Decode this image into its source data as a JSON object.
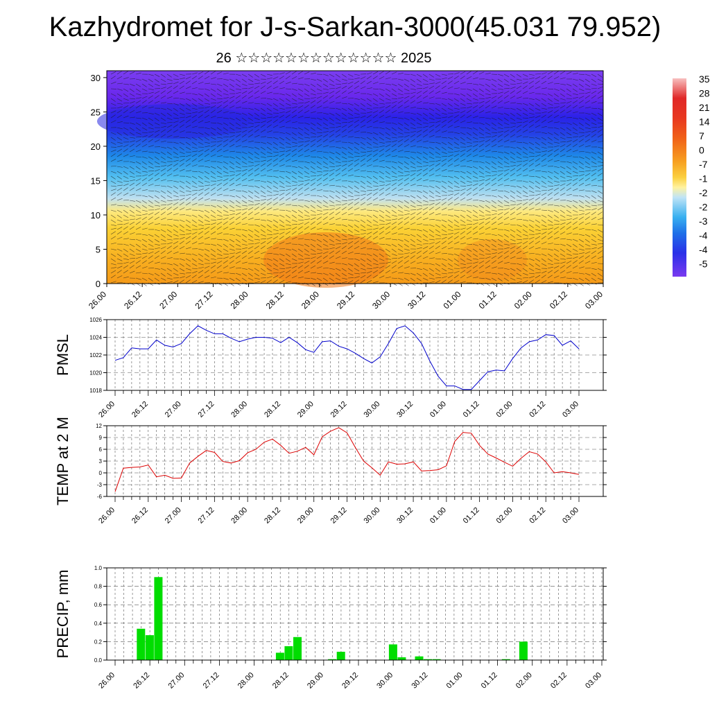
{
  "header": {
    "title": "Kazhydromet for J-s-Sarkan-3000(45.031 79.952)",
    "subtitle": "26 ☆☆☆☆☆☆☆☆☆☆☆☆☆ 2025"
  },
  "colors": {
    "pmsl_line": "#0000cc",
    "temp_line": "#dd0000",
    "precip_bar": "#00dd00"
  },
  "chart_data": [
    {
      "id": "cross_section",
      "type": "heatmap",
      "ylim": [
        0,
        31
      ],
      "yticks": [
        0,
        5,
        10,
        15,
        20,
        25,
        30
      ],
      "xtick_labels": [
        "26.00",
        "26.12",
        "27.00",
        "27.12",
        "28.00",
        "28.12",
        "29.00",
        "29.12",
        "30.00",
        "30.12",
        "01.00",
        "01.12",
        "02.00",
        "02.12",
        "03.00"
      ],
      "colorbar_labels": [
        "35",
        "28",
        "21",
        "14",
        "7",
        "0",
        "-7",
        "-1",
        "-2",
        "-2",
        "-3",
        "-4",
        "-4",
        "-5"
      ],
      "overlay": "wind barbs"
    },
    {
      "id": "pmsl",
      "type": "line",
      "ylabel": "PMSL",
      "ylim": [
        1018,
        1026
      ],
      "yticks": [
        1018,
        1020,
        1022,
        1024,
        1026
      ],
      "xtick_labels": [
        "26.00",
        "26.12",
        "27.00",
        "27.12",
        "28.00",
        "28.12",
        "29.00",
        "29.12",
        "30.00",
        "30.12",
        "01.00",
        "01.12",
        "02.00",
        "02.12",
        "03.00"
      ],
      "values": [
        1021.4,
        1021.7,
        1022.8,
        1022.7,
        1022.7,
        1023.7,
        1023.1,
        1022.9,
        1023.3,
        1024.4,
        1025.3,
        1024.8,
        1024.4,
        1024.4,
        1023.9,
        1023.5,
        1023.8,
        1024.0,
        1024.0,
        1023.9,
        1023.4,
        1024.0,
        1023.4,
        1022.6,
        1022.3,
        1023.5,
        1023.6,
        1023.0,
        1022.7,
        1022.2,
        1021.6,
        1021.1,
        1021.8,
        1023.3,
        1025.0,
        1025.3,
        1024.5,
        1023.3,
        1021.3,
        1019.6,
        1018.5,
        1018.5,
        1018.1,
        1018.1,
        1019.1,
        1020.1,
        1020.3,
        1020.2,
        1021.6,
        1022.8,
        1023.5,
        1023.7,
        1024.3,
        1024.2,
        1023.1,
        1023.6,
        1022.7
      ]
    },
    {
      "id": "temp2m",
      "type": "line",
      "ylabel": "TEMP at 2 M",
      "ylim": [
        -6,
        12
      ],
      "yticks": [
        -6,
        -3,
        0,
        3,
        6,
        9,
        12
      ],
      "xtick_labels": [
        "26.00",
        "26.12",
        "27.00",
        "27.12",
        "28.00",
        "28.12",
        "29.00",
        "29.12",
        "30.00",
        "30.12",
        "01.00",
        "01.12",
        "02.00",
        "02.12",
        "03.00"
      ],
      "values": [
        -4.8,
        1.2,
        1.4,
        1.5,
        2.0,
        -1.0,
        -0.6,
        -1.4,
        -1.3,
        2.5,
        4.2,
        5.7,
        5.2,
        2.9,
        2.5,
        3.1,
        5.1,
        6.0,
        7.8,
        8.6,
        7.0,
        5.0,
        5.5,
        6.5,
        4.6,
        9.2,
        10.6,
        11.5,
        10.2,
        6.5,
        3.0,
        1.3,
        -0.6,
        2.8,
        2.2,
        2.3,
        2.8,
        0.5,
        0.6,
        0.8,
        1.8,
        8.0,
        10.3,
        10.1,
        7.0,
        4.8,
        3.8,
        2.7,
        1.7,
        3.7,
        5.4,
        4.8,
        2.8,
        0.0,
        0.3,
        0.0,
        -0.4
      ]
    },
    {
      "id": "precip",
      "type": "bar",
      "ylabel": "PRECIP, mm",
      "ylim": [
        0,
        1.0
      ],
      "yticks": [
        0.0,
        0.2,
        0.4,
        0.6,
        0.8,
        1.0
      ],
      "ytick_labels": [
        "0.0",
        "0.2",
        "0.4",
        "0.6",
        "0.8",
        "1.0"
      ],
      "xtick_labels": [
        "26.00",
        "26.12",
        "27.00",
        "27.12",
        "28.00",
        "28.12",
        "29.00",
        "29.12",
        "30.00",
        "30.12",
        "01.00",
        "01.12",
        "02.00",
        "02.12",
        "03.00"
      ],
      "bars": [
        {
          "step": 3,
          "value": 0.34
        },
        {
          "step": 4,
          "value": 0.27
        },
        {
          "step": 5,
          "value": 0.9
        },
        {
          "step": 19,
          "value": 0.08
        },
        {
          "step": 20,
          "value": 0.15
        },
        {
          "step": 21,
          "value": 0.25
        },
        {
          "step": 25,
          "value": 0.01
        },
        {
          "step": 26,
          "value": 0.09
        },
        {
          "step": 32,
          "value": 0.17
        },
        {
          "step": 33,
          "value": 0.03
        },
        {
          "step": 35,
          "value": 0.04
        },
        {
          "step": 36,
          "value": 0.01
        },
        {
          "step": 37,
          "value": 0.01
        },
        {
          "step": 45,
          "value": 0.01
        },
        {
          "step": 47,
          "value": 0.2
        }
      ]
    }
  ]
}
